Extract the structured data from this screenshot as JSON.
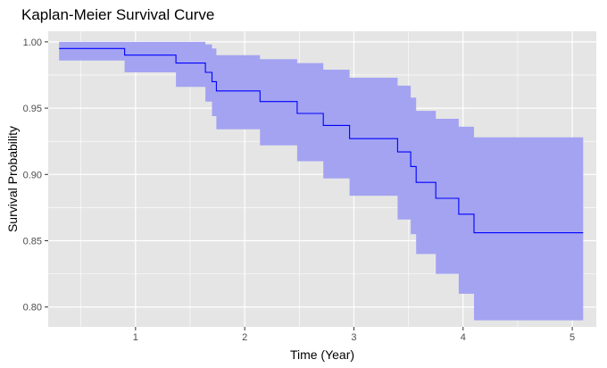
{
  "chart_data": {
    "type": "line",
    "title": "Kaplan-Meier Survival Curve",
    "xlabel": "Time (Year)",
    "ylabel": "Survival Probability",
    "xlim": [
      0.2,
      5.22
    ],
    "ylim": [
      0.785,
      1.008
    ],
    "x_ticks": [
      1,
      2,
      3,
      4,
      5
    ],
    "x_tick_labels": [
      "1",
      "2",
      "3",
      "4",
      "5"
    ],
    "y_ticks": [
      0.8,
      0.85,
      0.9,
      0.95,
      1.0
    ],
    "y_tick_labels": [
      "0.80",
      "0.85",
      "0.90",
      "0.95",
      "1.00"
    ],
    "grid": true,
    "legend": "none",
    "colors": {
      "panel_background": "#e5e5e5",
      "grid": "#ffffff",
      "curve": "#0000ff",
      "confidence_band": "#a3a3f2"
    },
    "series": [
      {
        "step": "post",
        "x": [
          0.3,
          0.9,
          1.37,
          1.64,
          1.7,
          1.74,
          2.14,
          2.48,
          2.72,
          2.96,
          3.4,
          3.52,
          3.57,
          3.75,
          3.96,
          4.1,
          5.1
        ],
        "survival": [
          0.995,
          0.99,
          0.984,
          0.977,
          0.97,
          0.963,
          0.955,
          0.946,
          0.937,
          0.927,
          0.917,
          0.906,
          0.894,
          0.882,
          0.87,
          0.856,
          0.856
        ],
        "lower": [
          0.986,
          0.977,
          0.966,
          0.955,
          0.944,
          0.934,
          0.922,
          0.91,
          0.897,
          0.884,
          0.866,
          0.855,
          0.84,
          0.825,
          0.81,
          0.79,
          0.79
        ],
        "upper": [
          1.0,
          1.0,
          1.0,
          0.998,
          0.995,
          0.99,
          0.987,
          0.984,
          0.979,
          0.973,
          0.967,
          0.958,
          0.948,
          0.942,
          0.936,
          0.928,
          0.928
        ]
      }
    ]
  }
}
